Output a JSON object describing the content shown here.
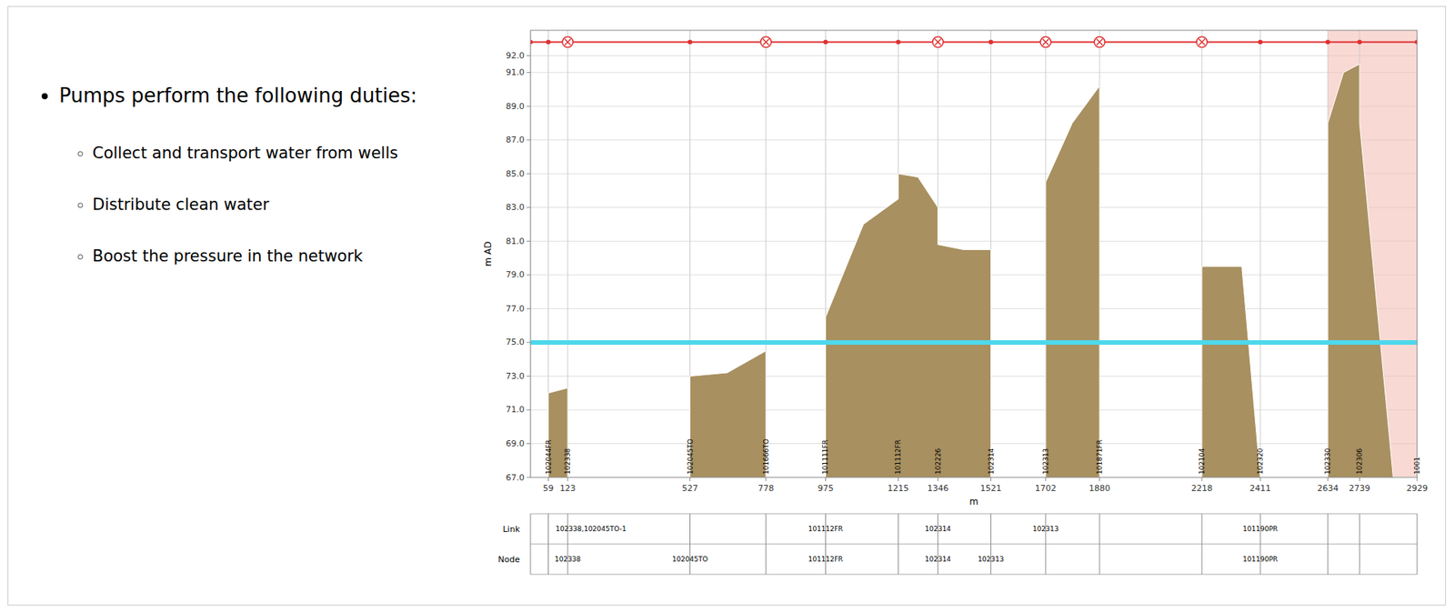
{
  "slide_text": {
    "heading": "Pumps perform the following duties:",
    "bullets": [
      "Collect and transport water from wells",
      "Distribute clean water",
      "Boost the pressure in the network"
    ]
  },
  "chart_data": {
    "type": "area",
    "xlabel": "m",
    "ylabel": "m AD",
    "xlim": [
      0,
      2929
    ],
    "ylim": [
      67.0,
      93.5
    ],
    "xticks": [
      59,
      123,
      527,
      778,
      975,
      1215,
      1346,
      1521,
      1702,
      1880,
      2218,
      2411,
      2634,
      2739,
      2929
    ],
    "yticks": [
      {
        "value": 67.0,
        "label": "67.0"
      },
      {
        "value": 69.0,
        "label": "69.0"
      },
      {
        "value": 71.0,
        "label": "71.0"
      },
      {
        "value": 73.0,
        "label": "73.0"
      },
      {
        "value": 75.0,
        "label": "75.0"
      },
      {
        "value": 77.0,
        "label": "77.0"
      },
      {
        "value": 79.0,
        "label": "79.0"
      },
      {
        "value": 81.0,
        "label": "81.0"
      },
      {
        "value": 83.0,
        "label": "83.0"
      },
      {
        "value": 85.0,
        "label": "85.0"
      },
      {
        "value": 87.0,
        "label": "87.0"
      },
      {
        "value": 89.0,
        "label": "89.0"
      },
      {
        "value": 91.0,
        "label": "91.0"
      },
      {
        "value": 92.0,
        "label": "92.0"
      }
    ],
    "grid": true,
    "series": [
      {
        "type": "area",
        "color": "#a89060",
        "x": [
          0,
          59,
          59,
          123,
          123,
          200,
          527,
          527,
          650,
          778,
          778,
          900,
          975,
          975,
          1100,
          1215,
          1215,
          1280,
          1346,
          1346,
          1430,
          1521,
          1521,
          1620,
          1702,
          1702,
          1790,
          1880,
          1880,
          2050,
          2218,
          2218,
          2350,
          2411,
          2411,
          2520,
          2634,
          2634,
          2686,
          2739,
          2739,
          2850,
          2929
        ],
        "values": [
          67.0,
          67.0,
          72.0,
          72.3,
          67.0,
          67.0,
          67.0,
          73.0,
          73.2,
          74.5,
          67.0,
          67.0,
          67.0,
          76.5,
          82.0,
          83.5,
          85.0,
          84.8,
          83.0,
          80.8,
          80.5,
          80.5,
          67.0,
          67.0,
          67.0,
          84.5,
          88.0,
          90.2,
          67.0,
          67.0,
          67.0,
          79.5,
          79.5,
          67.0,
          67.0,
          67.0,
          67.0,
          88.0,
          91.0,
          91.5,
          88.0,
          67.0,
          67.0
        ]
      }
    ],
    "pressure_zone": {
      "x": [
        2634,
        2929
      ],
      "color": "#f5c0b8"
    },
    "hlines": [
      {
        "value": 75.0,
        "color": "#4dd8ec"
      }
    ],
    "pipe": {
      "value": 92.8,
      "x": [
        0,
        2929
      ],
      "color": "#e03030",
      "nodes_x": [
        0,
        59,
        123,
        527,
        778,
        975,
        1215,
        1346,
        1521,
        1702,
        1880,
        2218,
        2411,
        2634,
        2739,
        2929
      ],
      "pumps_x": [
        123,
        778,
        1346,
        1702,
        1880,
        2218
      ]
    },
    "node_labels": {
      "x": [
        59,
        123,
        527,
        778,
        975,
        1215,
        1346,
        1521,
        1702,
        1880,
        2218,
        2411,
        2634,
        2739,
        2929
      ],
      "labels": [
        "102044FR",
        "102338",
        "102045TO",
        "101666TO",
        "101111FR",
        "101112FR",
        "102226",
        "102314",
        "102313",
        "101871FR",
        "102104",
        "102320",
        "102330",
        "102306",
        "1001"
      ]
    },
    "table": {
      "rows": [
        {
          "label": "Link",
          "x": [
            200,
            975,
            1346,
            1702,
            2411
          ],
          "labels": [
            "102338,102045TO-1",
            "101112FR",
            "102314",
            "102313",
            "101190PR"
          ]
        },
        {
          "label": "Node",
          "x": [
            123,
            527,
            975,
            1346,
            1521,
            2411
          ],
          "labels": [
            "102338",
            "102045TO",
            "101112FR",
            "102314",
            "102313",
            "101190PR"
          ]
        }
      ]
    }
  }
}
